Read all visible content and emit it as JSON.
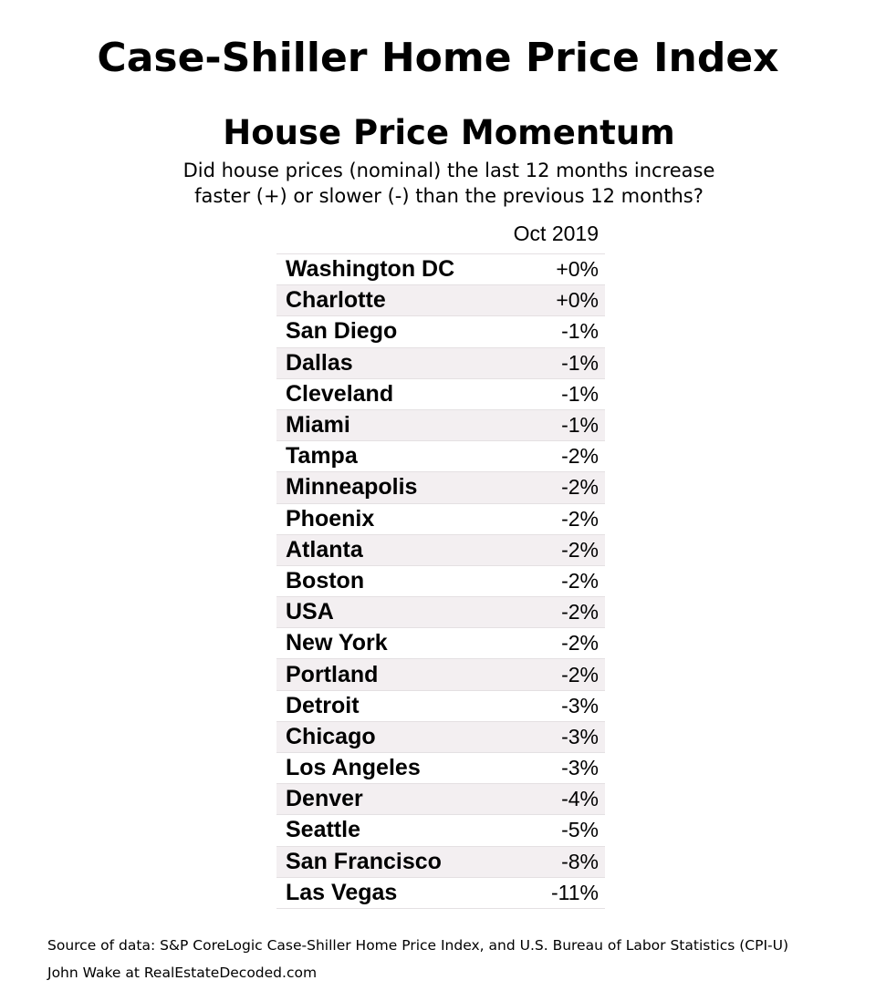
{
  "chart_data": {
    "type": "table",
    "title": "Case-Shiller Home Price Index",
    "subtitle": "House Price Momentum",
    "description_lines": [
      "Did house prices (nominal) the last 12 months increase",
      "faster (+) or slower (-) than the previous 12 months?"
    ],
    "column_header": "Oct 2019",
    "rows": [
      {
        "city": "Washington DC",
        "value": "+0%"
      },
      {
        "city": "Charlotte",
        "value": "+0%"
      },
      {
        "city": "San Diego",
        "value": "-1%"
      },
      {
        "city": "Dallas",
        "value": "-1%"
      },
      {
        "city": "Cleveland",
        "value": "-1%"
      },
      {
        "city": "Miami",
        "value": "-1%"
      },
      {
        "city": "Tampa",
        "value": "-2%"
      },
      {
        "city": "Minneapolis",
        "value": "-2%"
      },
      {
        "city": "Phoenix",
        "value": "-2%"
      },
      {
        "city": "Atlanta",
        "value": "-2%"
      },
      {
        "city": "Boston",
        "value": "-2%"
      },
      {
        "city": "USA",
        "value": "-2%"
      },
      {
        "city": "New York",
        "value": "-2%"
      },
      {
        "city": "Portland",
        "value": "-2%"
      },
      {
        "city": "Detroit",
        "value": "-3%"
      },
      {
        "city": "Chicago",
        "value": "-3%"
      },
      {
        "city": "Los Angeles",
        "value": "-3%"
      },
      {
        "city": "Denver",
        "value": "-4%"
      },
      {
        "city": "Seattle",
        "value": "-5%"
      },
      {
        "city": "San Francisco",
        "value": "-8%"
      },
      {
        "city": "Las Vegas",
        "value": "-11%"
      }
    ],
    "stripe_color": "#f3eff1",
    "source": "Source of data: S&P CoreLogic Case-Shiller Home Price Index, and U.S. Bureau of Labor Statistics (CPI-U)",
    "author": "John Wake at RealEstateDecoded.com"
  }
}
